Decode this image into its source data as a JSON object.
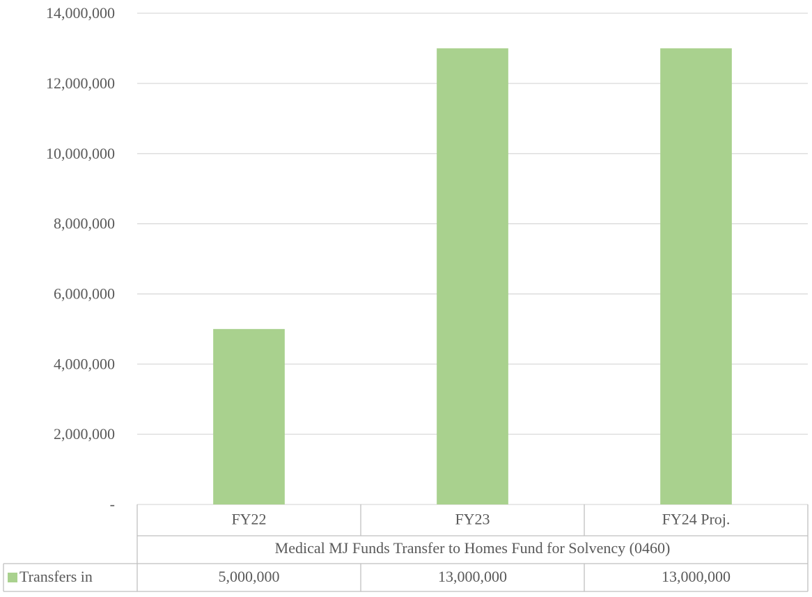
{
  "chart_data": {
    "type": "bar",
    "categories": [
      "FY22",
      "FY23",
      "FY24 Proj."
    ],
    "category_group": "Medical MJ Funds Transfer to Homes Fund for Solvency (0460)",
    "series": [
      {
        "name": "Transfers in",
        "color": "#a9d18e",
        "values": [
          5000000,
          13000000,
          13000000
        ],
        "value_labels": [
          "5,000,000",
          "13,000,000",
          "13,000,000"
        ]
      }
    ],
    "ylim": [
      0,
      14000000
    ],
    "yticks": [
      {
        "value": 0,
        "label": "-"
      },
      {
        "value": 2000000,
        "label": "2,000,000"
      },
      {
        "value": 4000000,
        "label": "4,000,000"
      },
      {
        "value": 6000000,
        "label": "6,000,000"
      },
      {
        "value": 8000000,
        "label": "8,000,000"
      },
      {
        "value": 10000000,
        "label": "10,000,000"
      },
      {
        "value": 12000000,
        "label": "12,000,000"
      },
      {
        "value": 14000000,
        "label": "14,000,000"
      }
    ],
    "grid": true,
    "data_table": true
  }
}
